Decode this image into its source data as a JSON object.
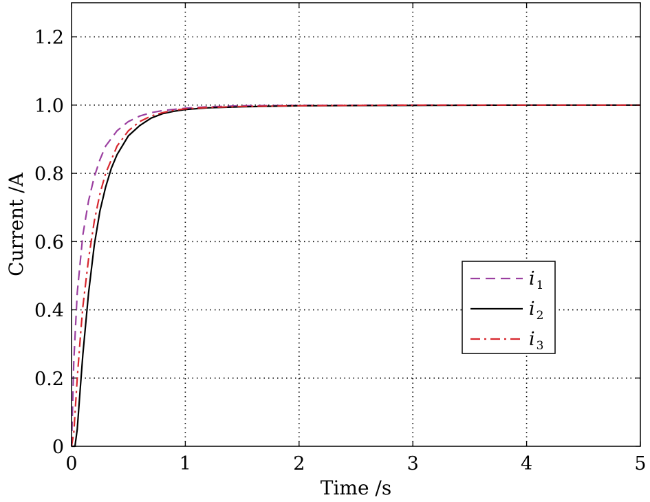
{
  "chart_data": {
    "type": "line",
    "title": "",
    "xlabel": "Time /s",
    "ylabel": "Current /A",
    "xlim": [
      0,
      5
    ],
    "ylim": [
      0,
      1.3
    ],
    "xticks": [
      0,
      1,
      2,
      3,
      4,
      5
    ],
    "xtick_labels": [
      "0",
      "1",
      "2",
      "3",
      "4",
      "5"
    ],
    "yticks": [
      0,
      0.2,
      0.4,
      0.6,
      0.8,
      1.0,
      1.2
    ],
    "ytick_labels": [
      "0",
      "0.2",
      "0.4",
      "0.6",
      "0.8",
      "1.0",
      "1.2"
    ],
    "grid": true,
    "legend_position": "right-middle",
    "series": [
      {
        "name": "i",
        "subscript": "1",
        "color": "#9b3fa0",
        "style": "dashed",
        "x": [
          0,
          0.02,
          0.05,
          0.1,
          0.15,
          0.2,
          0.25,
          0.3,
          0.4,
          0.5,
          0.6,
          0.7,
          0.8,
          1.0,
          1.2,
          1.5,
          2.0,
          3.0,
          4.0,
          5.0
        ],
        "y": [
          0,
          0.25,
          0.45,
          0.62,
          0.72,
          0.79,
          0.84,
          0.88,
          0.925,
          0.952,
          0.968,
          0.978,
          0.984,
          0.991,
          0.995,
          0.998,
          0.999,
          1.0,
          1.0,
          1.0
        ]
      },
      {
        "name": "i",
        "subscript": "2",
        "color": "#000000",
        "style": "solid",
        "x": [
          0,
          0.03,
          0.05,
          0.07,
          0.1,
          0.15,
          0.2,
          0.25,
          0.3,
          0.35,
          0.4,
          0.5,
          0.6,
          0.7,
          0.8,
          0.9,
          1.0,
          1.2,
          1.5,
          2.0,
          3.0,
          4.0,
          5.0
        ],
        "y": [
          0,
          0.0,
          0.05,
          0.14,
          0.27,
          0.45,
          0.59,
          0.69,
          0.76,
          0.815,
          0.855,
          0.91,
          0.94,
          0.962,
          0.975,
          0.982,
          0.987,
          0.992,
          0.995,
          0.998,
          0.999,
          1.0,
          1.0
        ]
      },
      {
        "name": "i",
        "subscript": "3",
        "color": "#d7262d",
        "style": "dashdot",
        "x": [
          0,
          0.02,
          0.05,
          0.08,
          0.1,
          0.15,
          0.2,
          0.25,
          0.3,
          0.4,
          0.5,
          0.6,
          0.7,
          0.8,
          0.9,
          1.0,
          1.2,
          1.5,
          2.0,
          3.0,
          4.0,
          5.0
        ],
        "y": [
          0,
          0.04,
          0.2,
          0.33,
          0.41,
          0.55,
          0.66,
          0.74,
          0.8,
          0.88,
          0.925,
          0.952,
          0.968,
          0.978,
          0.985,
          0.989,
          0.993,
          0.996,
          0.998,
          1.0,
          1.0,
          1.0
        ]
      }
    ]
  }
}
